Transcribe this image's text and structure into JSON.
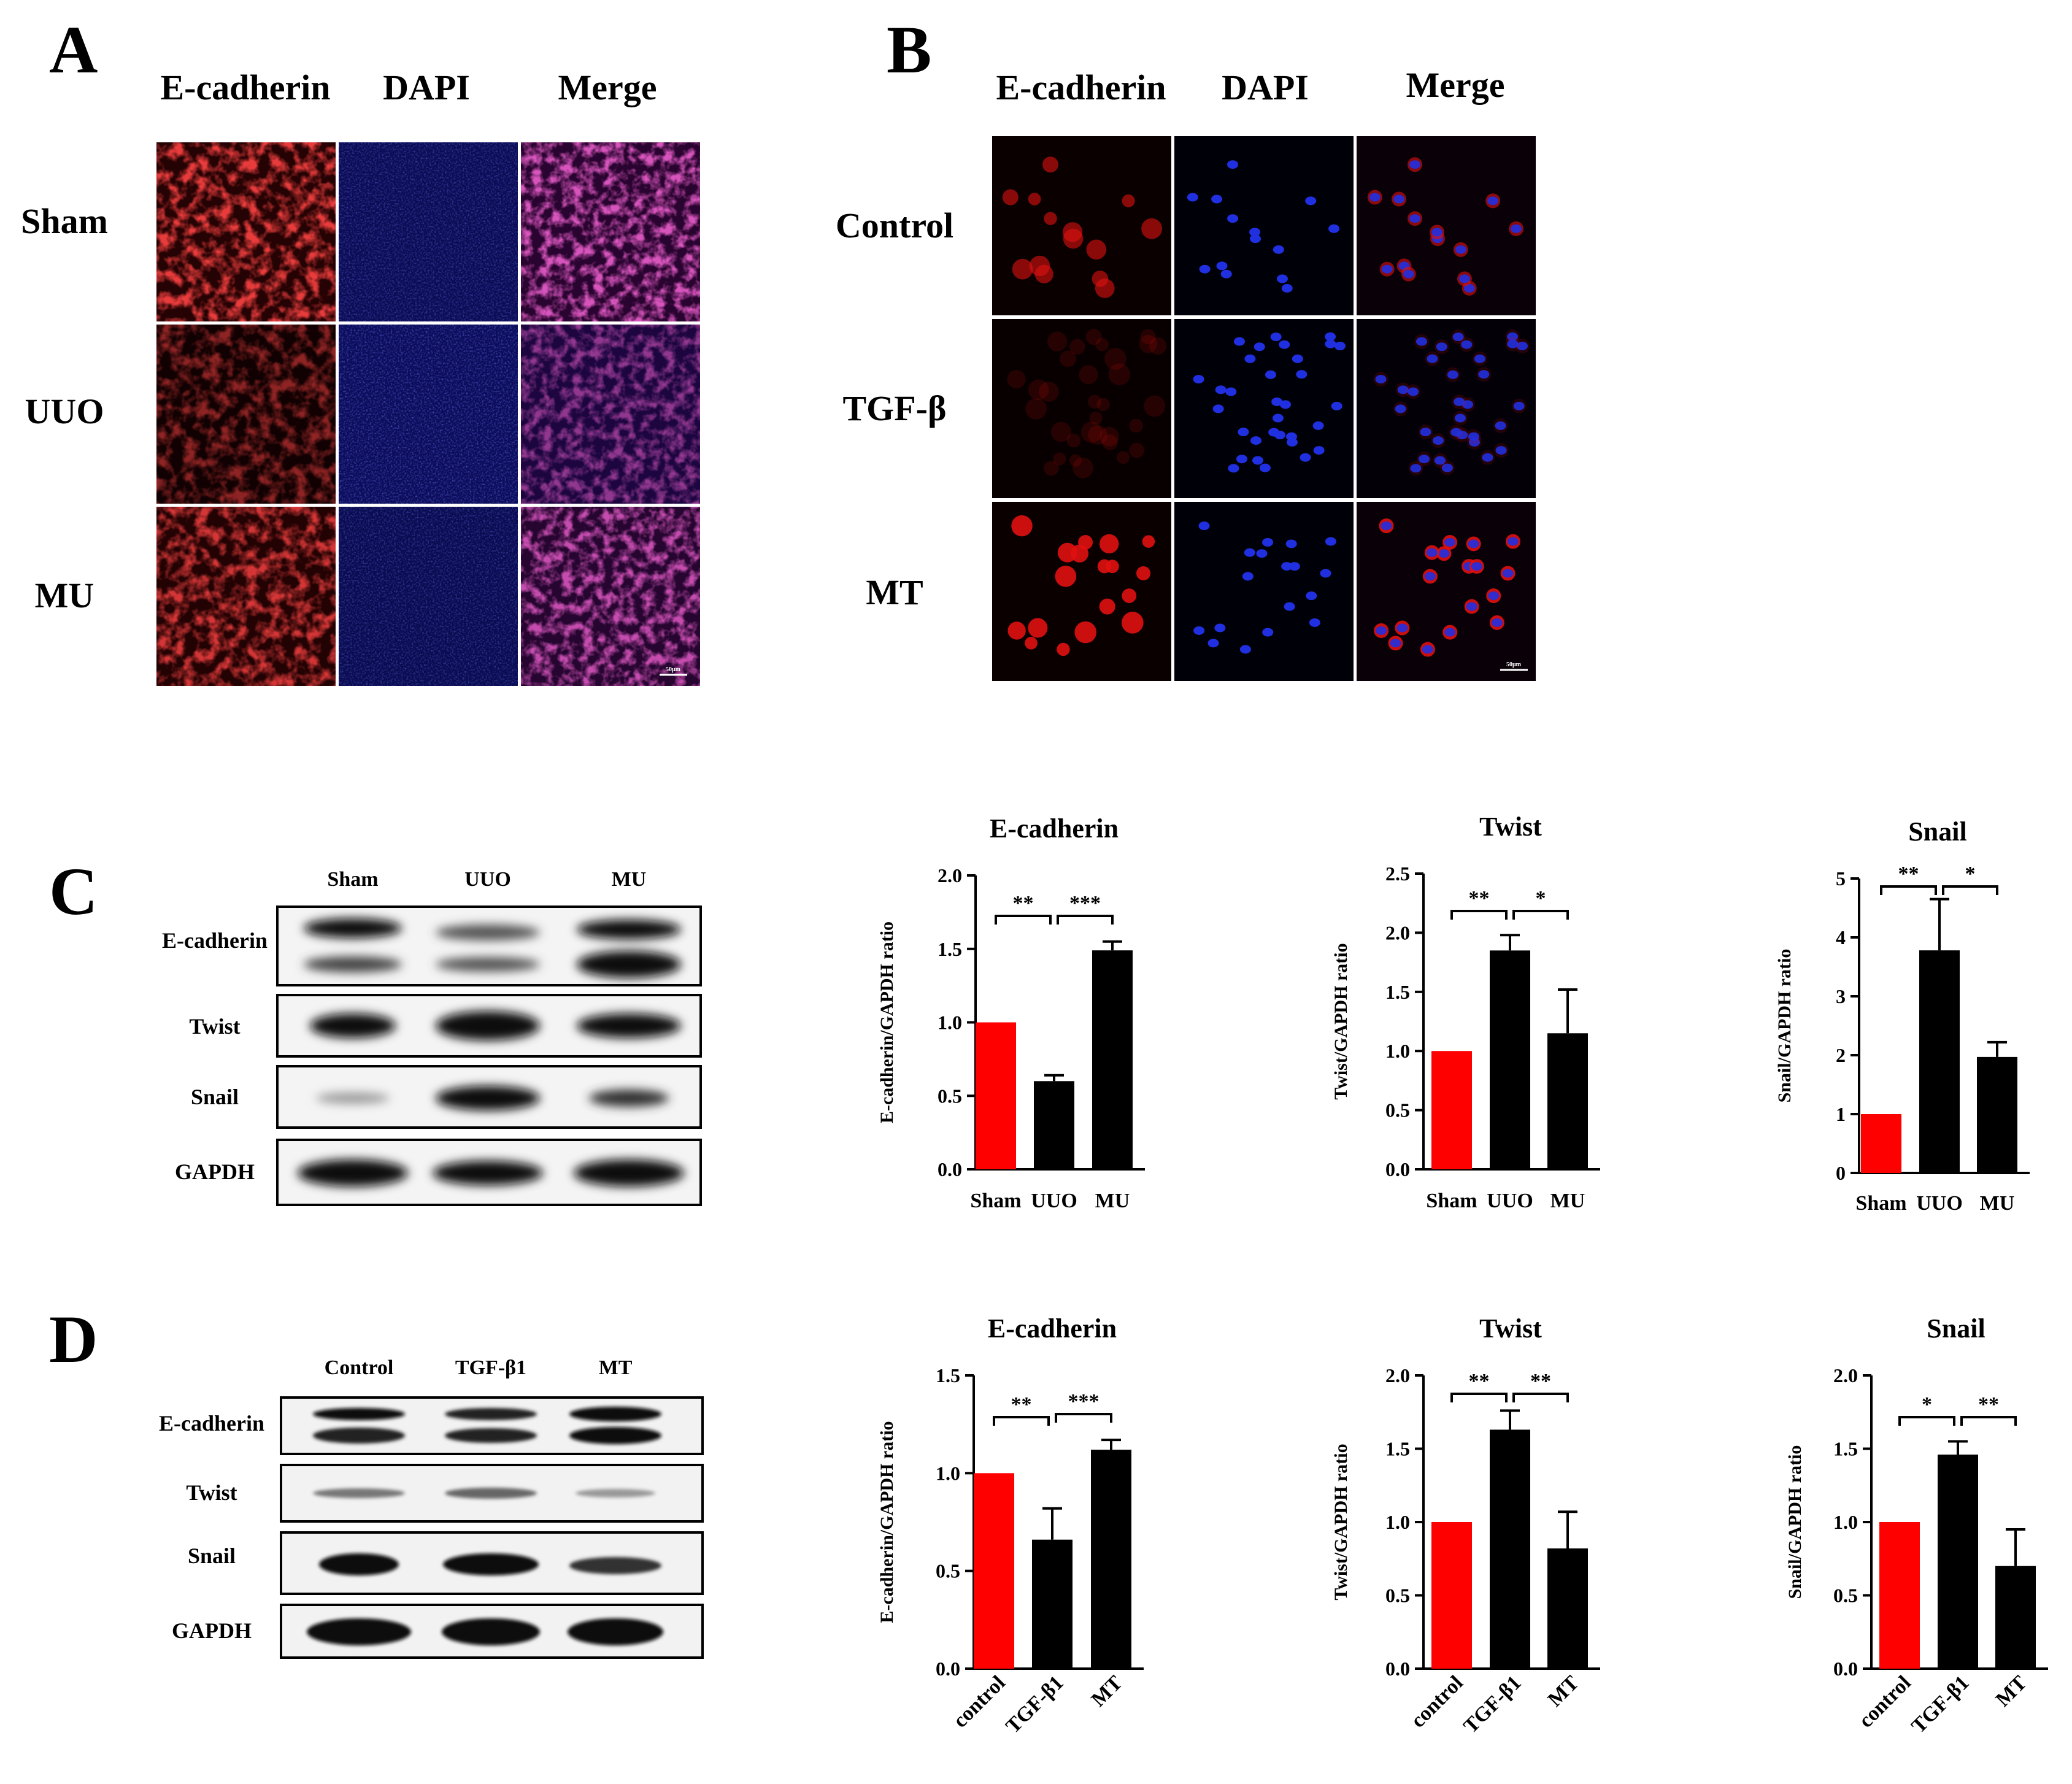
{
  "panels": {
    "A": {
      "letter": "A",
      "columns": [
        "E-cadherin",
        "DAPI",
        "Merge"
      ],
      "rows": [
        "Sham",
        "UUO",
        "MU"
      ],
      "scale_bar": "50μm"
    },
    "B": {
      "letter": "B",
      "columns": [
        "E-cadherin",
        "DAPI",
        "Merge"
      ],
      "rows": [
        "Control",
        "TGF-β",
        "MT"
      ],
      "scale_bar": "50μm"
    },
    "C": {
      "letter": "C",
      "blot_columns": [
        "Sham",
        "UUO",
        "MU"
      ],
      "blot_rows": [
        "E-cadherin",
        "Twist",
        "Snail",
        "GAPDH"
      ]
    },
    "D": {
      "letter": "D",
      "blot_columns": [
        "Control",
        "TGF-β1",
        "MT"
      ],
      "blot_rows": [
        "E-cadherin",
        "Twist",
        "Snail",
        "GAPDH"
      ]
    }
  },
  "colors": {
    "control_bar": "#ff0000",
    "treatment_bar": "#000000",
    "red_channel": "#e01010",
    "blue_channel": "#2030e0"
  },
  "chart_data": [
    {
      "id": "C-ecad",
      "type": "bar",
      "title": "E-cadherin",
      "categories": [
        "Sham",
        "UUO",
        "MU"
      ],
      "values": [
        1.0,
        0.6,
        1.49
      ],
      "errors": [
        0,
        0.04,
        0.06
      ],
      "ylabel": "E-cadherin/GAPDH ratio",
      "ylim": [
        0,
        2.0
      ],
      "yticks": [
        "0.0",
        "0.5",
        "1.0",
        "1.5",
        "2.0"
      ],
      "significance": [
        "**",
        "***"
      ]
    },
    {
      "id": "C-twist",
      "type": "bar",
      "title": "Twist",
      "categories": [
        "Sham",
        "UUO",
        "MU"
      ],
      "values": [
        1.0,
        1.85,
        1.15
      ],
      "errors": [
        0,
        0.13,
        0.37
      ],
      "ylabel": "Twist/GAPDH ratio",
      "ylim": [
        0,
        2.5
      ],
      "yticks": [
        "0.0",
        "0.5",
        "1.0",
        "1.5",
        "2.0",
        "2.5"
      ],
      "significance": [
        "**",
        "*"
      ]
    },
    {
      "id": "C-snail",
      "type": "bar",
      "title": "Snail",
      "categories": [
        "Sham",
        "UUO",
        "MU"
      ],
      "values": [
        1.0,
        3.78,
        1.97
      ],
      "errors": [
        0,
        0.87,
        0.25
      ],
      "ylabel": "Snail/GAPDH ratio",
      "ylim": [
        0,
        5
      ],
      "yticks": [
        "0",
        "1",
        "2",
        "3",
        "4",
        "5"
      ],
      "significance": [
        "**",
        "*"
      ]
    },
    {
      "id": "D-ecad",
      "type": "bar",
      "title": "E-cadherin",
      "categories": [
        "control",
        "TGF-β1",
        "MT"
      ],
      "values": [
        1.0,
        0.66,
        1.12
      ],
      "errors": [
        0,
        0.16,
        0.05
      ],
      "ylabel": "E-cadherin/GAPDH ratio",
      "ylim": [
        0,
        1.5
      ],
      "yticks": [
        "0.0",
        "0.5",
        "1.0",
        "1.5"
      ],
      "significance": [
        "**",
        "***"
      ]
    },
    {
      "id": "D-twist",
      "type": "bar",
      "title": "Twist",
      "categories": [
        "control",
        "TGF-β1",
        "MT"
      ],
      "values": [
        1.0,
        1.63,
        0.82
      ],
      "errors": [
        0,
        0.13,
        0.25
      ],
      "ylabel": "Twist/GAPDH ratio",
      "ylim": [
        0,
        2.0
      ],
      "yticks": [
        "0.0",
        "0.5",
        "1.0",
        "1.5",
        "2.0"
      ],
      "significance": [
        "**",
        "**"
      ]
    },
    {
      "id": "D-snail",
      "type": "bar",
      "title": "Snail",
      "categories": [
        "control",
        "TGF-β1",
        "MT"
      ],
      "values": [
        1.0,
        1.46,
        0.7
      ],
      "errors": [
        0,
        0.09,
        0.25
      ],
      "ylabel": "Snail/GAPDH ratio",
      "ylim": [
        0,
        2.0
      ],
      "yticks": [
        "0.0",
        "0.5",
        "1.0",
        "1.5",
        "2.0"
      ],
      "significance": [
        "*",
        "**"
      ]
    }
  ]
}
